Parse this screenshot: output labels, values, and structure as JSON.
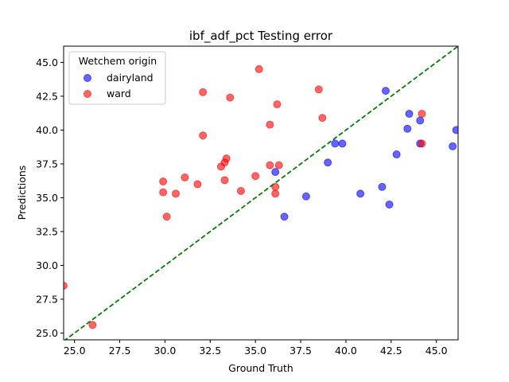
{
  "chart_data": {
    "type": "scatter",
    "title": "ibf_adf_pct Testing error",
    "xlabel": "Ground Truth",
    "ylabel": "Predictions",
    "xlim": [
      24.4,
      46.2
    ],
    "ylim": [
      24.5,
      46.2
    ],
    "xticks": [
      "25.0",
      "27.5",
      "30.0",
      "32.5",
      "35.0",
      "37.5",
      "40.0",
      "42.5",
      "45.0"
    ],
    "yticks": [
      "25.0",
      "27.5",
      "30.0",
      "32.5",
      "35.0",
      "37.5",
      "40.0",
      "42.5",
      "45.0"
    ],
    "legend": {
      "title": "Wetchem origin",
      "position": "top-left"
    },
    "reference_line": {
      "style": "dashed",
      "color": "#008000",
      "slope": 1
    },
    "series": [
      {
        "name": "dairyland",
        "color": "#0000ff",
        "points": [
          [
            36.1,
            36.9
          ],
          [
            36.6,
            33.6
          ],
          [
            37.8,
            35.1
          ],
          [
            39.0,
            37.6
          ],
          [
            39.4,
            39.0
          ],
          [
            39.8,
            39.0
          ],
          [
            40.8,
            35.3
          ],
          [
            42.0,
            35.8
          ],
          [
            42.2,
            42.9
          ],
          [
            42.4,
            34.5
          ],
          [
            42.8,
            38.2
          ],
          [
            43.4,
            40.1
          ],
          [
            43.5,
            41.2
          ],
          [
            44.1,
            40.7
          ],
          [
            44.1,
            39.0
          ],
          [
            45.9,
            38.8
          ],
          [
            46.1,
            40.0
          ]
        ]
      },
      {
        "name": "ward",
        "color": "#ff0000",
        "points": [
          [
            24.4,
            28.5
          ],
          [
            26.0,
            25.6
          ],
          [
            29.9,
            36.2
          ],
          [
            29.9,
            35.4
          ],
          [
            30.1,
            33.6
          ],
          [
            30.6,
            35.3
          ],
          [
            31.1,
            36.5
          ],
          [
            31.8,
            36.0
          ],
          [
            32.1,
            42.8
          ],
          [
            32.1,
            39.6
          ],
          [
            33.1,
            37.3
          ],
          [
            33.3,
            37.6
          ],
          [
            33.3,
            36.3
          ],
          [
            33.4,
            37.9
          ],
          [
            33.6,
            42.4
          ],
          [
            34.2,
            35.5
          ],
          [
            35.0,
            36.6
          ],
          [
            35.2,
            44.5
          ],
          [
            35.8,
            37.4
          ],
          [
            35.8,
            40.4
          ],
          [
            36.1,
            35.8
          ],
          [
            36.1,
            35.3
          ],
          [
            36.2,
            41.9
          ],
          [
            36.3,
            37.4
          ],
          [
            38.5,
            43.0
          ],
          [
            38.7,
            40.9
          ],
          [
            44.2,
            41.2
          ],
          [
            44.2,
            39.0
          ]
        ]
      }
    ]
  }
}
